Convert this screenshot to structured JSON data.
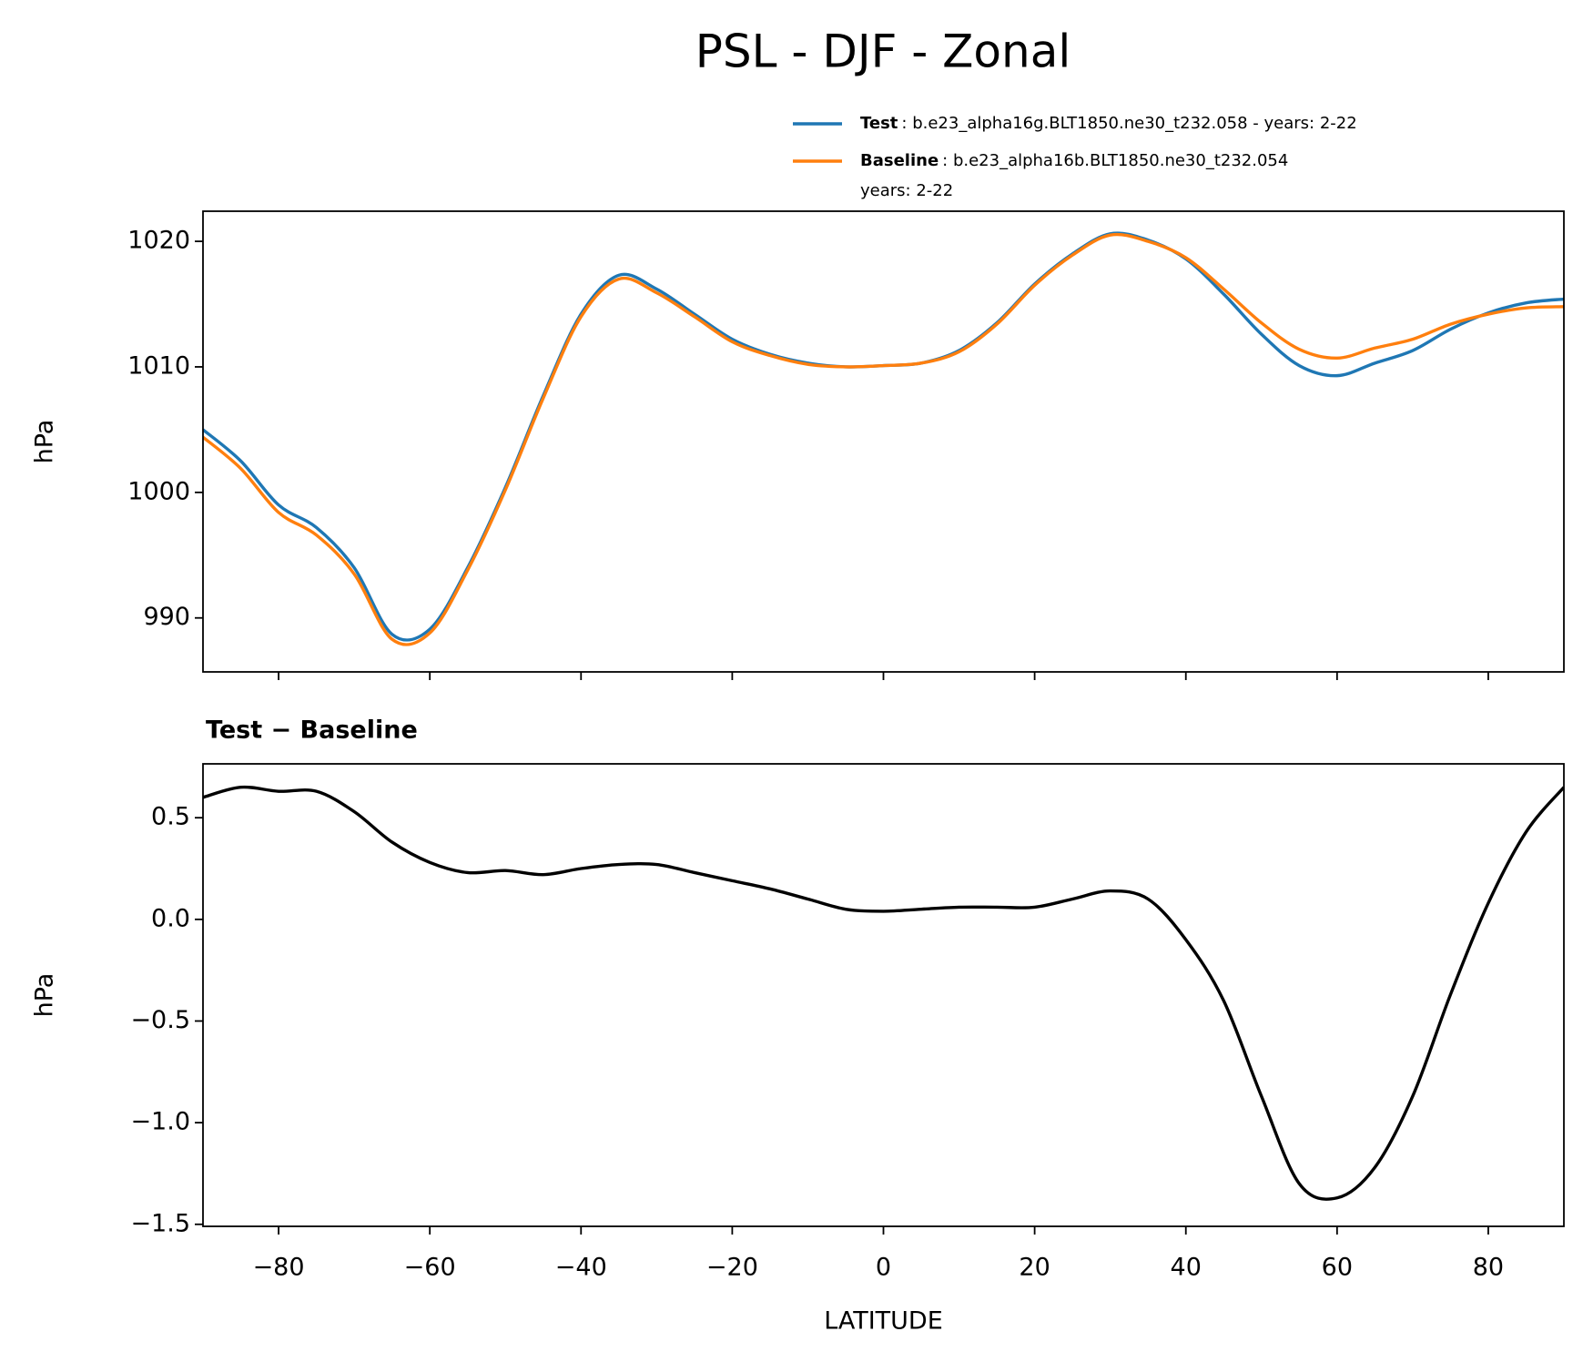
{
  "title": "PSL - DJF - Zonal",
  "chart_data": [
    {
      "type": "line",
      "ylabel": "hPa",
      "xlim": [
        -90,
        90
      ],
      "xticks": [
        -80,
        -60,
        -40,
        -20,
        0,
        20,
        40,
        60,
        80
      ],
      "ylim": [
        985.7,
        1022.4
      ],
      "yticks": [
        990,
        1000,
        1010,
        1020
      ],
      "x": [
        -90,
        -85,
        -80,
        -75,
        -70,
        -65,
        -60,
        -55,
        -50,
        -45,
        -40,
        -35,
        -30,
        -25,
        -20,
        -15,
        -10,
        -5,
        0,
        5,
        10,
        15,
        20,
        25,
        30,
        35,
        40,
        45,
        50,
        55,
        60,
        65,
        70,
        75,
        80,
        85,
        90
      ],
      "series": [
        {
          "name": "Test",
          "label": [
            ": b.e23_alpha16g.BLT1850.ne30_t232.058 - years: 2-22"
          ],
          "color": "#1f77b4",
          "values": [
            1005.0,
            1002.5,
            999.0,
            997.2,
            994.0,
            988.7,
            989.1,
            994.0,
            1000.4,
            1007.7,
            1014.2,
            1017.3,
            1016.2,
            1014.2,
            1012.2,
            1011.0,
            1010.3,
            1010.0,
            1010.1,
            1010.3,
            1011.3,
            1013.5,
            1016.6,
            1019.0,
            1020.6,
            1020.1,
            1018.6,
            1015.8,
            1012.6,
            1010.1,
            1009.3,
            1010.3,
            1011.3,
            1013.0,
            1014.3,
            1015.1,
            1015.4
          ]
        },
        {
          "name": "Baseline",
          "label": [
            ": b.e23_alpha16b.BLT1850.ne30_t232.054",
            "years: 2-22"
          ],
          "color": "#ff7f0e",
          "values": [
            1004.4,
            1001.9,
            998.4,
            996.6,
            993.5,
            988.3,
            988.8,
            993.8,
            1000.2,
            1007.5,
            1014.0,
            1017.0,
            1015.9,
            1014.0,
            1012.0,
            1010.9,
            1010.2,
            1010.0,
            1010.1,
            1010.3,
            1011.2,
            1013.4,
            1016.5,
            1018.9,
            1020.5,
            1020.0,
            1018.7,
            1016.2,
            1013.5,
            1011.4,
            1010.7,
            1011.5,
            1012.2,
            1013.4,
            1014.2,
            1014.7,
            1014.8
          ]
        }
      ]
    },
    {
      "type": "line",
      "title": "Test − Baseline",
      "ylabel": "hPa",
      "xlabel": "LATITUDE",
      "xlim": [
        -90,
        90
      ],
      "xticks": [
        {
          "value": -80,
          "label": "−80"
        },
        {
          "value": -60,
          "label": "−60"
        },
        {
          "value": -40,
          "label": "−40"
        },
        {
          "value": -20,
          "label": "−20"
        },
        0,
        20,
        40,
        60,
        80
      ],
      "ylim": [
        -1.51,
        0.765
      ],
      "yticks": [
        0.5,
        {
          "value": 0,
          "label": "0.0"
        },
        {
          "value": -0.5,
          "label": "−0.5"
        },
        {
          "value": -1,
          "label": "−1.0"
        },
        {
          "value": -1.5,
          "label": "−1.5"
        }
      ],
      "x": [
        -90,
        -85,
        -80,
        -75,
        -70,
        -65,
        -60,
        -55,
        -50,
        -45,
        -40,
        -35,
        -30,
        -25,
        -20,
        -15,
        -10,
        -5,
        0,
        5,
        10,
        15,
        20,
        25,
        30,
        35,
        40,
        45,
        50,
        55,
        60,
        65,
        70,
        75,
        80,
        85,
        90
      ],
      "series": [
        {
          "color": "#000000",
          "values": [
            0.6,
            0.65,
            0.63,
            0.63,
            0.53,
            0.38,
            0.28,
            0.23,
            0.24,
            0.22,
            0.25,
            0.27,
            0.27,
            0.23,
            0.19,
            0.15,
            0.1,
            0.05,
            0.04,
            0.05,
            0.06,
            0.06,
            0.06,
            0.1,
            0.14,
            0.1,
            -0.1,
            -0.4,
            -0.87,
            -1.3,
            -1.37,
            -1.22,
            -0.87,
            -0.37,
            0.08,
            0.43,
            0.65
          ]
        }
      ]
    }
  ]
}
